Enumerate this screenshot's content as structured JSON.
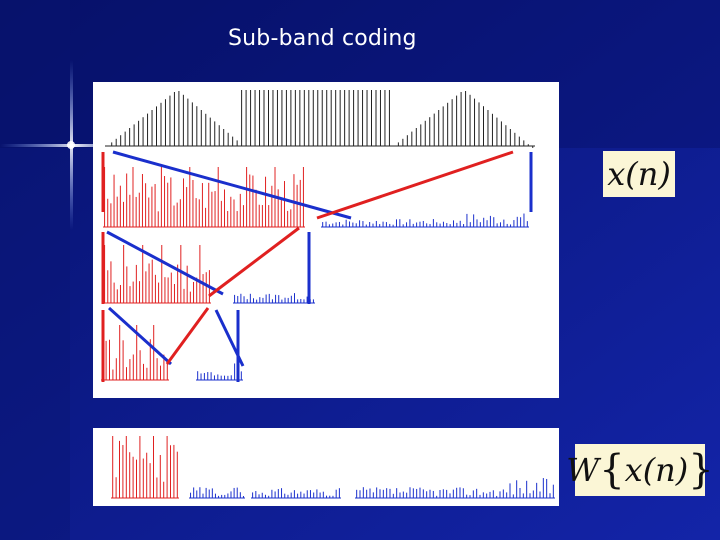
{
  "slide": {
    "title": "Sub-band coding",
    "background_color": "#0d1a8a",
    "accent_lowpass": "#e02020",
    "accent_highpass": "#1a2fcc"
  },
  "formulas": {
    "signal": "x(n)",
    "transform_prefix": "W",
    "transform_inner": "x(n)"
  },
  "figure": {
    "description_icons": [
      "sparkle-flare-icon"
    ]
  }
}
